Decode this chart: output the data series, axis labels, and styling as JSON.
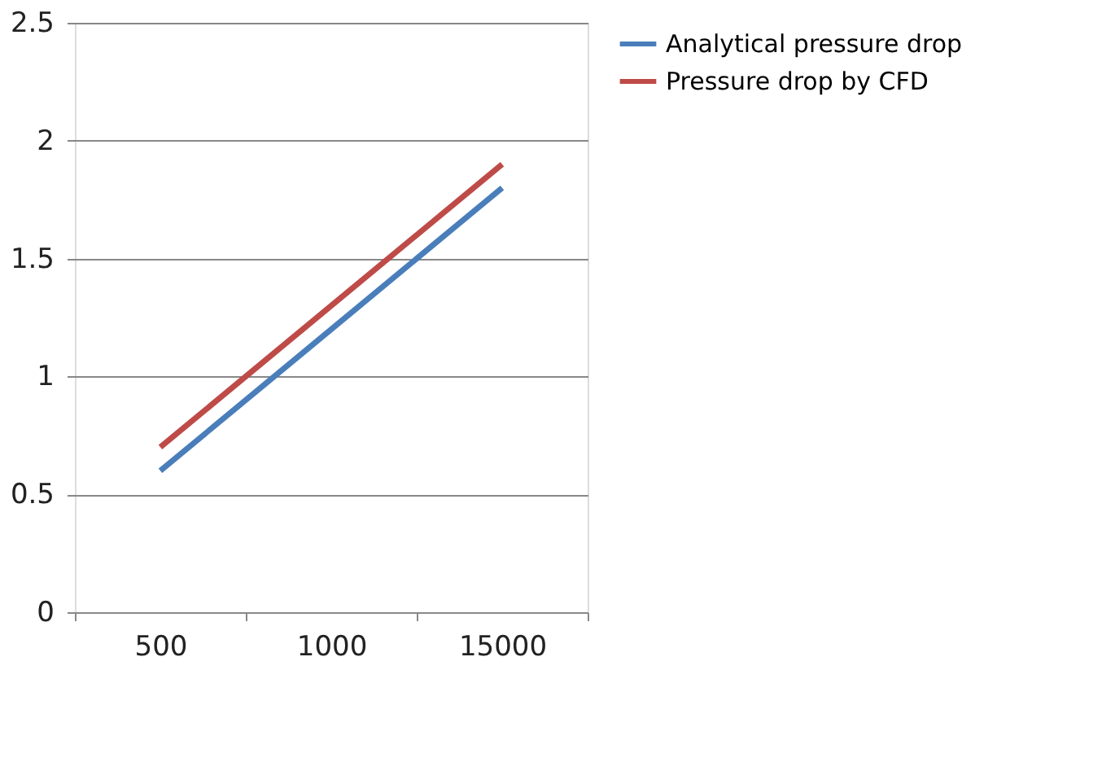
{
  "chart_data": {
    "type": "line",
    "categories": [
      "500",
      "1000",
      "15000"
    ],
    "series": [
      {
        "name": "Analytical pressure drop",
        "color": "#4a7ebb",
        "values": [
          0.6,
          1.2,
          1.8
        ]
      },
      {
        "name": "Pressure drop by CFD",
        "color": "#be4b48",
        "values": [
          0.7,
          1.3,
          1.9
        ]
      }
    ],
    "ylim": [
      0,
      2.5
    ],
    "yticks": [
      0,
      0.5,
      1,
      1.5,
      2,
      2.5
    ],
    "grid": "y",
    "legend": "right",
    "marker": "none",
    "line_style": "solid"
  }
}
